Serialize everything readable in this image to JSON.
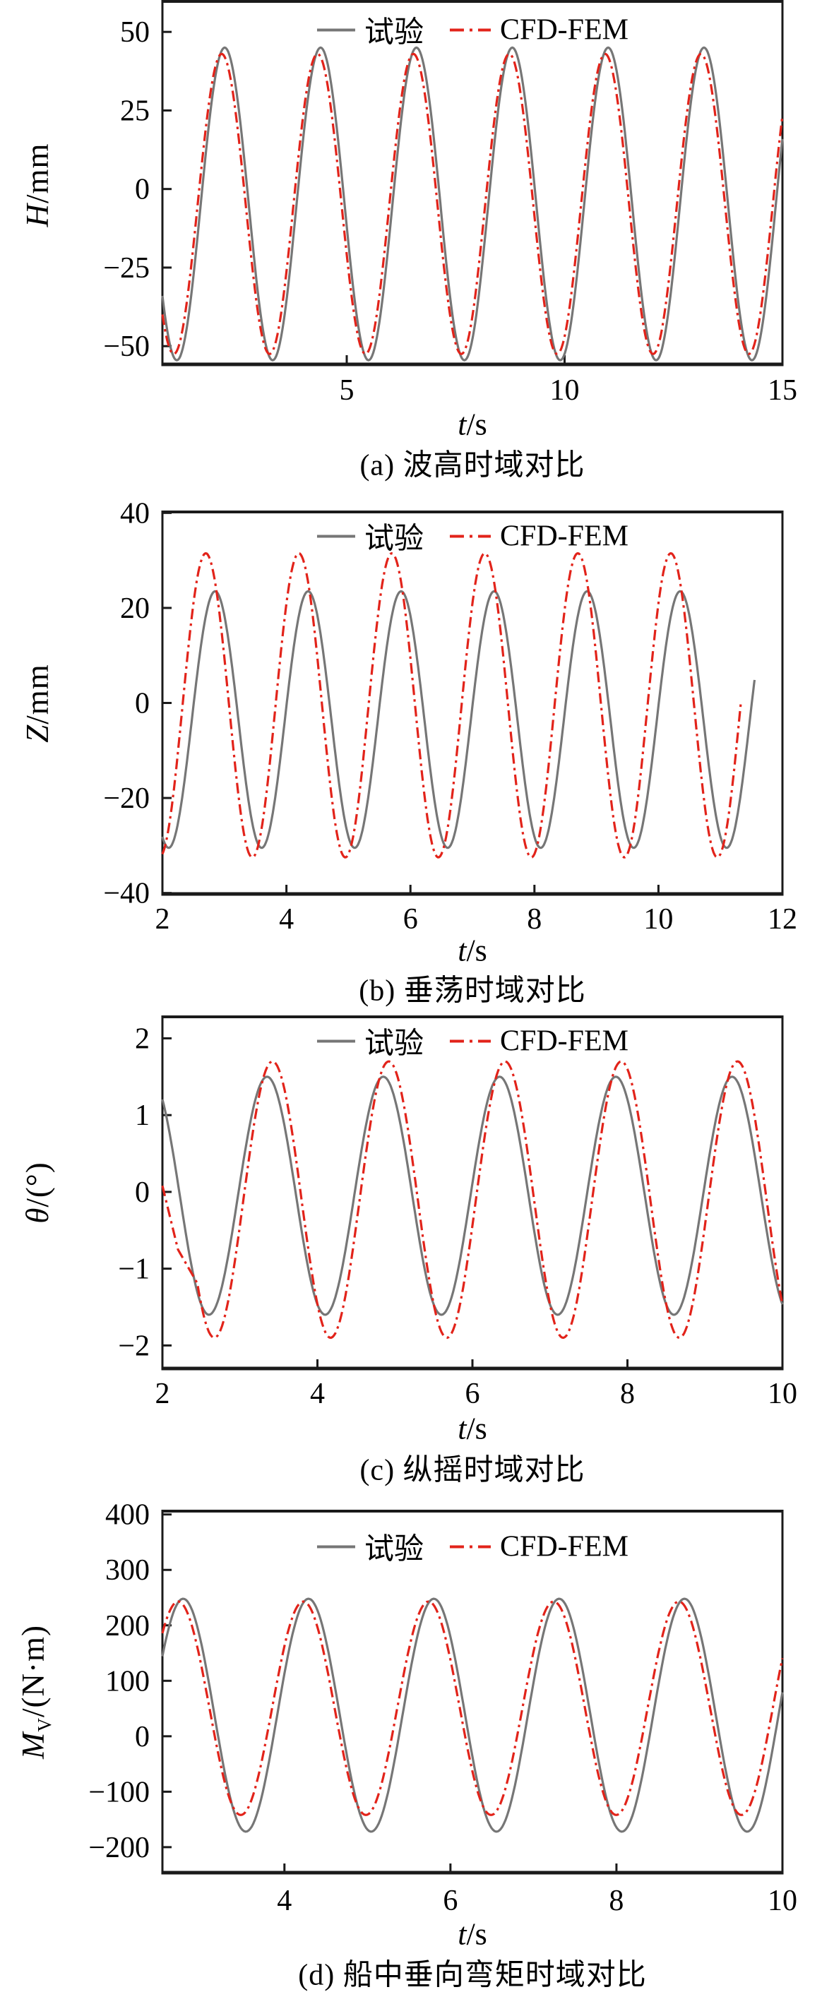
{
  "page": {
    "background": "#ffffff"
  },
  "colors": {
    "experiment": "#767676",
    "cfdfem": "#e2231a",
    "axis": "#1a1a1a",
    "text": "#000000"
  },
  "chart_data": [
    {
      "id": "a",
      "type": "line",
      "caption": "(a) 波高时域对比",
      "xlabel_var": "t",
      "xlabel_rest": "/s",
      "ylabel_var": "H",
      "ylabel_sub": "",
      "ylabel_rest": "/mm",
      "x_range": [
        0.77,
        15
      ],
      "x_ticks": [
        5,
        10,
        15
      ],
      "y_range": [
        -55.8,
        59.7
      ],
      "y_ticks": [
        50,
        25,
        0,
        -25,
        -50
      ],
      "grid": false,
      "legend_position": "top-center",
      "series": [
        {
          "name": "试验",
          "color_key": "experiment",
          "style": "solid",
          "wave": {
            "period": 2.2,
            "t_peak": 2.2,
            "max": 45,
            "min": -54.5,
            "t_start": 0.77,
            "t_end": 15
          }
        },
        {
          "name": "CFD-FEM",
          "color_key": "cfdfem",
          "style": "dashdot",
          "wave": {
            "period": 2.2,
            "t_peak": 2.13,
            "max": 43,
            "min": -52.5,
            "t_start": 0.77,
            "t_end": 15
          }
        }
      ]
    },
    {
      "id": "b",
      "type": "line",
      "caption": "(b) 垂荡时域对比",
      "xlabel_var": "t",
      "xlabel_rest": "/s",
      "ylabel_var": "Z",
      "ylabel_sub": "",
      "ylabel_rest": "/mm",
      "x_range": [
        2,
        12
      ],
      "x_ticks": [
        2,
        4,
        6,
        8,
        10,
        12
      ],
      "y_range": [
        -40.2,
        40.2
      ],
      "y_ticks": [
        40,
        20,
        0,
        -20,
        -40
      ],
      "grid": false,
      "legend_position": "top-center",
      "series": [
        {
          "name": "试验",
          "color_key": "experiment",
          "style": "solid",
          "wave": {
            "period": 1.5,
            "t_peak": 2.85,
            "max": 23.5,
            "min": -30.5,
            "t_start": 2,
            "t_end": 11.55
          }
        },
        {
          "name": "CFD-FEM",
          "color_key": "cfdfem",
          "style": "dashdot",
          "wave": {
            "period": 1.5,
            "t_peak": 2.7,
            "max": 31.5,
            "min": -32.5,
            "t_start": 2,
            "t_end": 11.33
          }
        }
      ]
    },
    {
      "id": "c",
      "type": "line",
      "caption": "(c) 纵摇时域对比",
      "xlabel_var": "t",
      "xlabel_rest": "/s",
      "ylabel_var": "θ",
      "ylabel_sub": "",
      "ylabel_rest": "/(°)",
      "x_range": [
        2,
        10
      ],
      "x_ticks": [
        2,
        4,
        6,
        8,
        10
      ],
      "y_range": [
        -2.3,
        2.28
      ],
      "y_ticks": [
        2,
        1,
        0,
        -1,
        -2
      ],
      "grid": false,
      "legend_position": "top-center",
      "series": [
        {
          "name": "试验",
          "color_key": "experiment",
          "style": "solid",
          "wave": {
            "period": 1.5,
            "t_peak": 3.35,
            "max": 1.5,
            "min": -1.6,
            "t_start": 2,
            "t_end": 10
          }
        },
        {
          "name": "CFD-FEM",
          "color_key": "cfdfem",
          "style": "dashdot",
          "lead_points": [
            [
              2,
              0.08
            ],
            [
              2.2,
              -0.75
            ],
            [
              2.45,
              -1.19
            ]
          ],
          "wave": {
            "period": 1.5,
            "t_peak": 3.42,
            "max": 1.7,
            "min": -1.9,
            "t_start": 2.45,
            "t_end": 10
          }
        }
      ]
    },
    {
      "id": "d",
      "type": "line",
      "caption": "(d) 船中垂向弯矩时域对比",
      "xlabel_var": "t",
      "xlabel_rest": "/s",
      "ylabel_var": "M",
      "ylabel_sub": "V",
      "ylabel_rest": "/(N·m)",
      "x_range": [
        2.53,
        10
      ],
      "x_ticks": [
        4,
        6,
        8,
        10
      ],
      "y_range": [
        -246,
        406
      ],
      "y_ticks": [
        400,
        300,
        200,
        100,
        0,
        -100,
        -200
      ],
      "grid": false,
      "legend_position": "top-center",
      "series": [
        {
          "name": "试验",
          "color_key": "experiment",
          "style": "solid",
          "wave": {
            "period": 1.51,
            "t_peak": 2.78,
            "max": 248,
            "min": -172,
            "t_start": 2.53,
            "t_end": 10
          }
        },
        {
          "name": "CFD-FEM",
          "color_key": "cfdfem",
          "style": "dashdot",
          "wave": {
            "period": 1.508,
            "t_peak": 2.72,
            "max": 243,
            "min": -142,
            "t_start": 2.53,
            "t_end": 10
          }
        }
      ]
    }
  ]
}
